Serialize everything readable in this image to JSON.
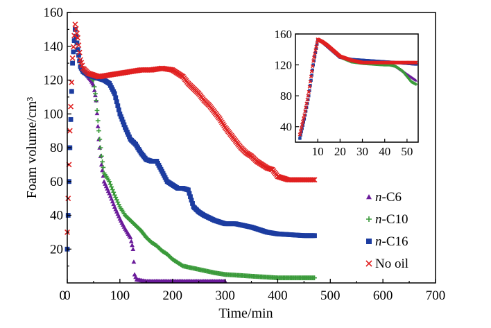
{
  "chart_data": {
    "type": "scatter",
    "xlabel": "Time/min",
    "ylabel": "Foam volume/cm³",
    "xlim": [
      0,
      700
    ],
    "ylim": [
      0,
      160
    ],
    "xticks": [
      "0",
      "100",
      "200",
      "300",
      "400",
      "500",
      "600",
      "700"
    ],
    "yticks": [
      "20",
      "40",
      "60",
      "80",
      "100",
      "120",
      "140",
      "160"
    ],
    "grid": false,
    "legend_position": "bottom-right",
    "series": [
      {
        "name": "n-C6",
        "name_italic": "n",
        "name_rest": "-C6",
        "marker": "triangle",
        "color": "#6a1b9a",
        "x": [
          0,
          5,
          10,
          15,
          20,
          25,
          30,
          35,
          40,
          45,
          50,
          55,
          60,
          65,
          70,
          80,
          90,
          100,
          110,
          120,
          125,
          128,
          132,
          150,
          200,
          250,
          300
        ],
        "y": [
          20,
          80,
          130,
          150,
          138,
          128,
          125,
          124,
          122,
          120,
          117,
          108,
          85,
          70,
          60,
          53,
          45,
          38,
          32,
          27,
          20,
          5,
          2,
          1,
          1,
          1,
          1
        ]
      },
      {
        "name": "n-C10",
        "name_italic": "n",
        "name_rest": "-C10",
        "marker": "plus",
        "color": "#3a9a3a",
        "x": [
          0,
          5,
          10,
          15,
          20,
          25,
          30,
          40,
          50,
          55,
          60,
          65,
          70,
          80,
          90,
          100,
          110,
          120,
          130,
          140,
          150,
          160,
          170,
          180,
          190,
          200,
          220,
          250,
          280,
          300,
          350,
          400,
          450,
          470
        ],
        "y": [
          20,
          80,
          130,
          150,
          138,
          128,
          125,
          123,
          120,
          108,
          90,
          75,
          65,
          60,
          52,
          45,
          40,
          37,
          34,
          31,
          27,
          24,
          22,
          19,
          17,
          14,
          10,
          8,
          6,
          5,
          4,
          3,
          3,
          3
        ]
      },
      {
        "name": "n-C16",
        "name_italic": "n",
        "name_rest": "-C16",
        "marker": "square",
        "color": "#1c3ca0",
        "x": [
          0,
          5,
          10,
          15,
          20,
          25,
          30,
          40,
          50,
          60,
          70,
          80,
          90,
          100,
          110,
          120,
          130,
          140,
          150,
          160,
          170,
          180,
          190,
          200,
          210,
          220,
          230,
          240,
          250,
          260,
          280,
          300,
          320,
          350,
          380,
          400,
          450,
          470
        ],
        "y": [
          20,
          80,
          130,
          150,
          138,
          128,
          125,
          123,
          122,
          121,
          120,
          118,
          112,
          100,
          92,
          85,
          82,
          77,
          73,
          72,
          72,
          66,
          60,
          58,
          56,
          56,
          55,
          45,
          42,
          40,
          37,
          35,
          35,
          33,
          30,
          29,
          28,
          28
        ]
      },
      {
        "name": "No oil",
        "name_italic": "",
        "name_rest": "No oil",
        "marker": "x",
        "color": "#e02020",
        "x": [
          0,
          5,
          10,
          15,
          20,
          25,
          30,
          40,
          50,
          60,
          80,
          100,
          120,
          140,
          160,
          180,
          200,
          210,
          220,
          230,
          240,
          250,
          260,
          270,
          280,
          290,
          300,
          310,
          320,
          330,
          340,
          350,
          360,
          370,
          380,
          390,
          400,
          420,
          440,
          460,
          470
        ],
        "y": [
          30,
          90,
          133,
          153,
          145,
          132,
          127,
          124,
          123,
          122,
          123,
          124,
          125,
          126,
          126,
          127,
          126,
          124,
          122,
          118,
          115,
          112,
          108,
          105,
          101,
          97,
          92,
          88,
          84,
          80,
          77,
          75,
          72,
          70,
          68,
          67,
          63,
          61,
          61,
          61,
          61
        ]
      }
    ],
    "inset": {
      "xlim": [
        0,
        55
      ],
      "ylim": [
        20,
        160
      ],
      "xticks": [
        "10",
        "20",
        "30",
        "40",
        "50"
      ],
      "yticks": [
        "40",
        "80",
        "120",
        "160"
      ],
      "series": [
        {
          "name": "n-C6",
          "color": "#6a1b9a",
          "x": [
            2,
            4,
            6,
            8,
            10,
            12,
            14,
            16,
            18,
            20,
            25,
            30,
            35,
            40,
            42,
            45,
            48,
            50,
            52,
            54
          ],
          "y": [
            25,
            50,
            80,
            120,
            152,
            150,
            145,
            140,
            135,
            130,
            126,
            124,
            124,
            124,
            122,
            118,
            112,
            108,
            104,
            100
          ]
        },
        {
          "name": "n-C10",
          "color": "#3a9a3a",
          "x": [
            2,
            4,
            6,
            8,
            10,
            12,
            14,
            16,
            18,
            20,
            25,
            30,
            35,
            40,
            42,
            45,
            48,
            50,
            52,
            54
          ],
          "y": [
            25,
            50,
            80,
            120,
            152,
            150,
            145,
            140,
            135,
            130,
            124,
            122,
            121,
            120,
            120,
            118,
            112,
            105,
            98,
            95
          ]
        },
        {
          "name": "n-C16",
          "color": "#1c3ca0",
          "x": [
            2,
            4,
            6,
            8,
            10,
            12,
            14,
            16,
            18,
            20,
            25,
            30,
            35,
            40,
            45,
            50,
            54
          ],
          "y": [
            25,
            50,
            80,
            120,
            152,
            150,
            145,
            140,
            135,
            130,
            127,
            126,
            125,
            124,
            123,
            122,
            121
          ]
        },
        {
          "name": "No oil",
          "color": "#e02020",
          "x": [
            2,
            4,
            6,
            8,
            10,
            12,
            14,
            16,
            18,
            20,
            25,
            30,
            35,
            40,
            45,
            50,
            54
          ],
          "y": [
            30,
            55,
            85,
            125,
            153,
            150,
            146,
            141,
            136,
            131,
            126,
            123,
            123,
            123,
            123,
            123,
            123
          ]
        }
      ]
    }
  }
}
